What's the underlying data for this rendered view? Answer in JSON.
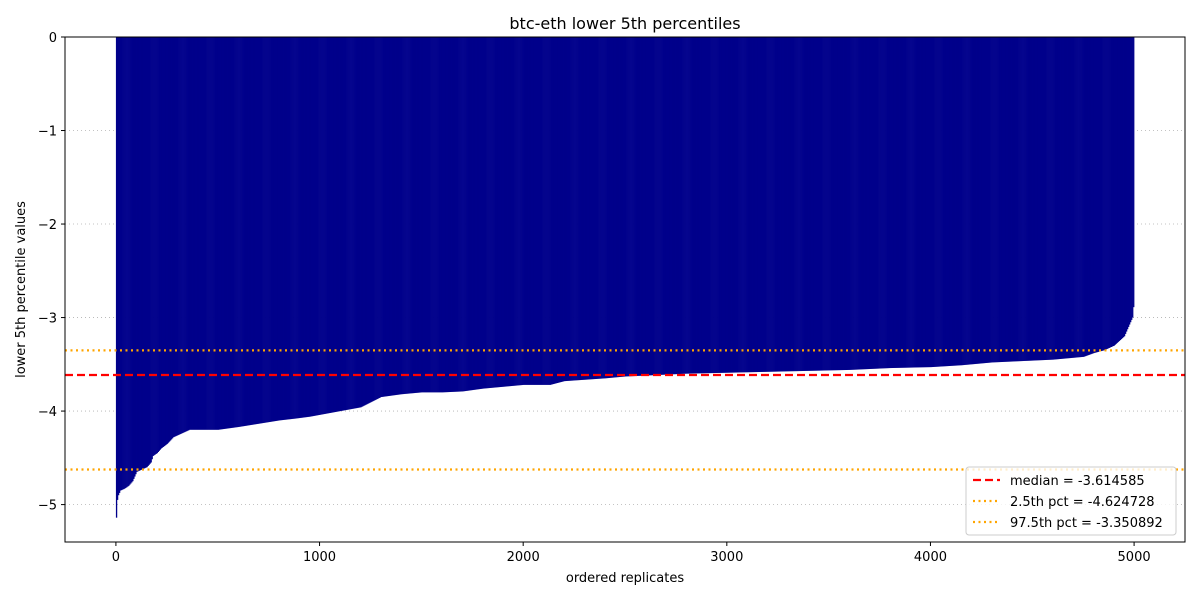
{
  "chart_data": {
    "type": "bar",
    "title": "btc-eth lower 5th percentiles",
    "xlabel": "ordered replicates",
    "ylabel": "lower 5th percentile values",
    "xlim": [
      -250,
      5250
    ],
    "ylim": [
      -5.4,
      0
    ],
    "xticks": [
      0,
      1000,
      2000,
      3000,
      4000,
      5000
    ],
    "yticks": [
      0,
      -1,
      -2,
      -3,
      -4,
      -5
    ],
    "xtick_labels": [
      "0",
      "1000",
      "2000",
      "3000",
      "4000",
      "5000"
    ],
    "ytick_labels": [
      "0",
      "−1",
      "−2",
      "−3",
      "−4",
      "−5"
    ],
    "grid": "y-dotted",
    "legend_position": "lower-right",
    "n_replicates": 5000,
    "bar_color": "#00008b",
    "sorted_values_profile": {
      "index": [
        0,
        2,
        5,
        10,
        20,
        40,
        60,
        80,
        100,
        120,
        150,
        170,
        180,
        200,
        220,
        250,
        280,
        300,
        360,
        500,
        600,
        800,
        880,
        950,
        1000,
        1100,
        1200,
        1300,
        1400,
        1500,
        1600,
        1700,
        1800,
        1900,
        2000,
        2130,
        2200,
        2400,
        2500,
        2600,
        2800,
        3000,
        3200,
        3400,
        3600,
        3800,
        4000,
        4150,
        4300,
        4600,
        4750,
        4800,
        4850,
        4900,
        4950,
        4970,
        4990,
        4999
      ],
      "value": [
        -5.14,
        -5.02,
        -4.95,
        -4.9,
        -4.85,
        -4.83,
        -4.8,
        -4.75,
        -4.65,
        -4.63,
        -4.6,
        -4.55,
        -4.48,
        -4.45,
        -4.4,
        -4.35,
        -4.28,
        -4.26,
        -4.2,
        -4.2,
        -4.17,
        -4.1,
        -4.08,
        -4.06,
        -4.04,
        -4.0,
        -3.96,
        -3.85,
        -3.82,
        -3.8,
        -3.8,
        -3.79,
        -3.76,
        -3.74,
        -3.72,
        -3.72,
        -3.68,
        -3.65,
        -3.63,
        -3.62,
        -3.6,
        -3.59,
        -3.58,
        -3.57,
        -3.56,
        -3.54,
        -3.53,
        -3.51,
        -3.48,
        -3.45,
        -3.42,
        -3.38,
        -3.35,
        -3.3,
        -3.2,
        -3.1,
        -3.0,
        -2.8
      ]
    },
    "reference_lines": [
      {
        "name": "median = -3.614585",
        "y": -3.614585,
        "color": "#ff0000",
        "style": "dashed"
      },
      {
        "name": "2.5th pct = -4.624728",
        "y": -4.624728,
        "color": "#ffa500",
        "style": "dotted"
      },
      {
        "name": "97.5th pct = -3.350892",
        "y": -3.350892,
        "color": "#ffa500",
        "style": "dotted"
      }
    ]
  }
}
